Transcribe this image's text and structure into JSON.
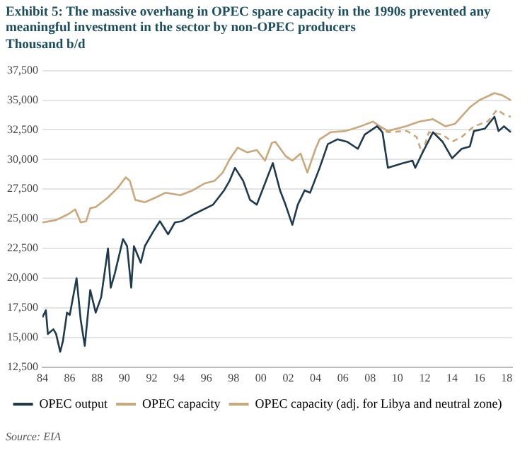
{
  "chart_data": {
    "type": "line",
    "title": "Exhibit 5: The massive overhang in OPEC spare capacity in the 1990s prevented any meaningful investment in the sector by non-OPEC producers",
    "subtitle": "Thousand b/d",
    "annotations": [
      "Source: EIA"
    ],
    "xlim": [
      1984,
      2018.4
    ],
    "xticks": [
      {
        "value": 1984,
        "label": "84"
      },
      {
        "value": 1986,
        "label": "86"
      },
      {
        "value": 1988,
        "label": "88"
      },
      {
        "value": 1990,
        "label": "90"
      },
      {
        "value": 1992,
        "label": "92"
      },
      {
        "value": 1994,
        "label": "94"
      },
      {
        "value": 1996,
        "label": "96"
      },
      {
        "value": 1998,
        "label": "98"
      },
      {
        "value": 2000,
        "label": "00"
      },
      {
        "value": 2002,
        "label": "02"
      },
      {
        "value": 2004,
        "label": "04"
      },
      {
        "value": 2006,
        "label": "06"
      },
      {
        "value": 2008,
        "label": "08"
      },
      {
        "value": 2010,
        "label": "10"
      },
      {
        "value": 2012,
        "label": "12"
      },
      {
        "value": 2014,
        "label": "14"
      },
      {
        "value": 2016,
        "label": "16"
      },
      {
        "value": 2018,
        "label": "18"
      }
    ],
    "ylim": [
      12500,
      37500
    ],
    "yticks": [
      {
        "value": 12500,
        "label": "12,500"
      },
      {
        "value": 15000,
        "label": "15,000"
      },
      {
        "value": 17500,
        "label": "17,500"
      },
      {
        "value": 20000,
        "label": "20,000"
      },
      {
        "value": 22500,
        "label": "22,500"
      },
      {
        "value": 25000,
        "label": "25,000"
      },
      {
        "value": 27500,
        "label": "27,500"
      },
      {
        "value": 30000,
        "label": "30,000"
      },
      {
        "value": 32500,
        "label": "32,500"
      },
      {
        "value": 35000,
        "label": "35,000"
      },
      {
        "value": 37500,
        "label": "37,500"
      }
    ],
    "grid": "y",
    "legend": "bottom",
    "marker": "none",
    "line_style": "solid",
    "series": [
      {
        "name": "OPEC output",
        "color": "#1f3a4d",
        "x": [
          1984.0,
          1984.25,
          1984.4,
          1984.8,
          1985.0,
          1985.3,
          1985.5,
          1985.8,
          1986.0,
          1986.5,
          1986.8,
          1987.1,
          1987.5,
          1987.9,
          1988.3,
          1988.8,
          1989.0,
          1989.3,
          1989.9,
          1990.2,
          1990.5,
          1990.7,
          1991.2,
          1991.5,
          1992.1,
          1992.6,
          1993.2,
          1993.7,
          1994.2,
          1995.1,
          1996.5,
          1997.3,
          1997.7,
          1998.1,
          1998.7,
          1999.2,
          1999.7,
          2000.87,
          2001.4,
          2001.8,
          2002.3,
          2002.7,
          2003.2,
          2003.6,
          2004.3,
          2004.9,
          2005.6,
          2006.3,
          2007.1,
          2007.6,
          2008.5,
          2008.9,
          2009.3,
          2010.4,
          2011.1,
          2011.3,
          2011.8,
          2012.6,
          2013.3,
          2014.0,
          2014.7,
          2015.3,
          2015.6,
          2016.4,
          2017.1,
          2017.4,
          2017.8,
          2018.3
        ],
        "values": [
          16700,
          17300,
          15300,
          15700,
          15300,
          13800,
          14700,
          17100,
          16900,
          20000,
          16500,
          14300,
          19000,
          17100,
          18400,
          22500,
          19200,
          20400,
          23300,
          22700,
          19200,
          22700,
          21300,
          22700,
          23900,
          24800,
          23700,
          24700,
          24800,
          25400,
          26200,
          27400,
          28200,
          29300,
          28200,
          26600,
          26200,
          29700,
          27400,
          26200,
          24500,
          26200,
          27400,
          27200,
          29300,
          31300,
          31700,
          31500,
          30900,
          32100,
          32800,
          32300,
          29300,
          29700,
          29900,
          29300,
          30500,
          32300,
          31500,
          30100,
          30900,
          31100,
          32400,
          32600,
          33600,
          32400,
          32800,
          32300
        ]
      },
      {
        "name": "OPEC capacity",
        "color": "#c9a87c",
        "x": [
          1984.0,
          1985.0,
          1985.9,
          1986.4,
          1986.8,
          1987.2,
          1987.5,
          1987.9,
          1988.8,
          1989.5,
          1990.1,
          1990.4,
          1990.8,
          1991.5,
          1992.3,
          1993.0,
          1994.1,
          1995.0,
          1995.9,
          1996.6,
          1997.2,
          1997.7,
          1998.3,
          1999.0,
          1999.7,
          2000.3,
          2000.8,
          2001.05,
          2001.8,
          2002.3,
          2002.9,
          2003.4,
          2004.0,
          2004.3,
          2005.1,
          2006.2,
          2007.3,
          2008.2,
          2008.7,
          2009.3,
          2010.6,
          2011.6,
          2012.6,
          2013.5,
          2014.2,
          2015.3,
          2016.0,
          2017.1,
          2017.7,
          2018.3
        ],
        "values": [
          24700,
          24900,
          25400,
          25800,
          24700,
          24800,
          25900,
          26000,
          26800,
          27600,
          28500,
          28200,
          26600,
          26400,
          26800,
          27200,
          27000,
          27400,
          28000,
          28200,
          28900,
          30000,
          31000,
          30600,
          30800,
          29900,
          31400,
          31500,
          30300,
          29900,
          30500,
          28900,
          30900,
          31700,
          32300,
          32400,
          32800,
          33200,
          32800,
          32400,
          32800,
          33200,
          33400,
          32800,
          33000,
          34400,
          35000,
          35600,
          35400,
          35000
        ]
      },
      {
        "name": "OPEC capacity (adj. for Libya and neutral zone)",
        "color": "#c9a87c",
        "line_style": "dashed",
        "x": [
          2008.5,
          2009.3,
          2010.7,
          2011.4,
          2011.8,
          2012.3,
          2013.3,
          2014.0,
          2014.7,
          2015.6,
          2016.6,
          2017.3,
          2017.8,
          2018.3
        ],
        "values": [
          32800,
          32300,
          32400,
          31900,
          30500,
          32300,
          32100,
          31500,
          31900,
          32800,
          33200,
          34200,
          33800,
          33600
        ]
      }
    ]
  }
}
